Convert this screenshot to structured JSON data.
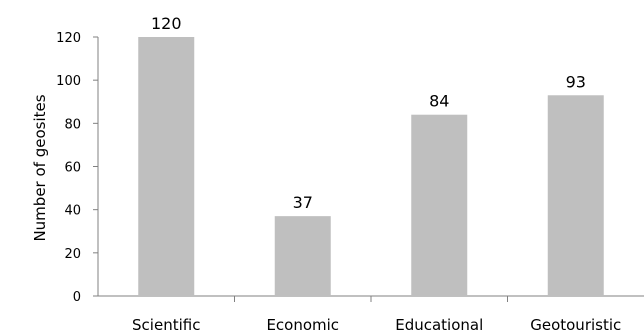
{
  "chart_data": {
    "type": "bar",
    "title": "",
    "xlabel": "",
    "ylabel": "Number of geosites",
    "categories": [
      "Scientific",
      "Economic",
      "Educational",
      "Geotouristic"
    ],
    "values": [
      120,
      37,
      84,
      93
    ],
    "data_labels": [
      "120",
      "37",
      "84",
      "93"
    ],
    "ylim": [
      0,
      120
    ],
    "yticks": [
      0,
      20,
      40,
      60,
      80,
      100,
      120
    ],
    "ytick_labels": [
      "0",
      "20",
      "40",
      "60",
      "80",
      "100",
      "120"
    ],
    "grid": false,
    "legend": "none",
    "colors": {
      "bar": "#bfbfbf",
      "axis": "#808080",
      "text": "#000000"
    }
  }
}
